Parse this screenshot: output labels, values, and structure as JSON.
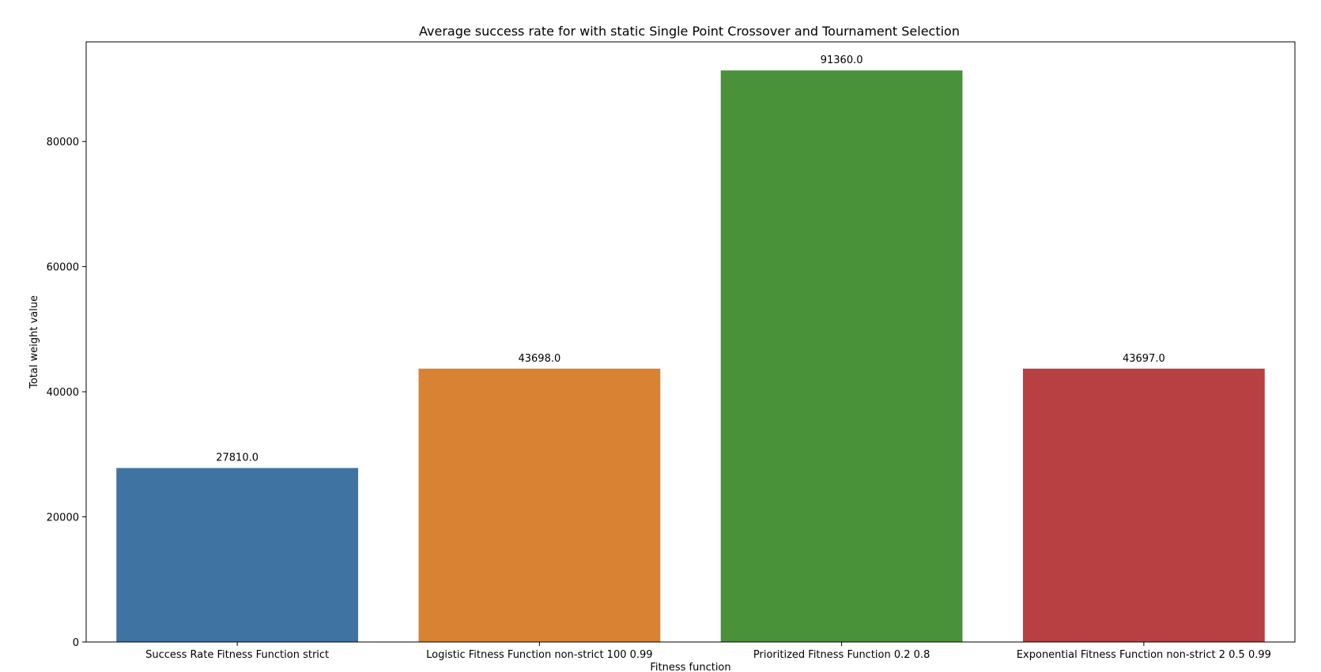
{
  "chart_data": {
    "type": "bar",
    "title": "Average success rate for with static Single Point Crossover and Tournament Selection",
    "xlabel": "Fitness function",
    "ylabel": "Total weight value",
    "categories": [
      "Success Rate Fitness Function strict",
      "Logistic Fitness Function non-strict 100 0.99",
      "Prioritized Fitness Function 0.2 0.8",
      "Exponential Fitness Function non-strict 2 0.5 0.99"
    ],
    "values": [
      27810.0,
      43698.0,
      91360.0,
      43697.0
    ],
    "data_labels": [
      "27810.0",
      "43698.0",
      "91360.0",
      "43697.0"
    ],
    "colors": [
      "#3f73a2",
      "#d98233",
      "#4a923a",
      "#b84043"
    ],
    "ylim": [
      0,
      95928
    ],
    "yticks": [
      0,
      20000,
      40000,
      60000,
      80000
    ],
    "grid": false,
    "legend": "none"
  }
}
